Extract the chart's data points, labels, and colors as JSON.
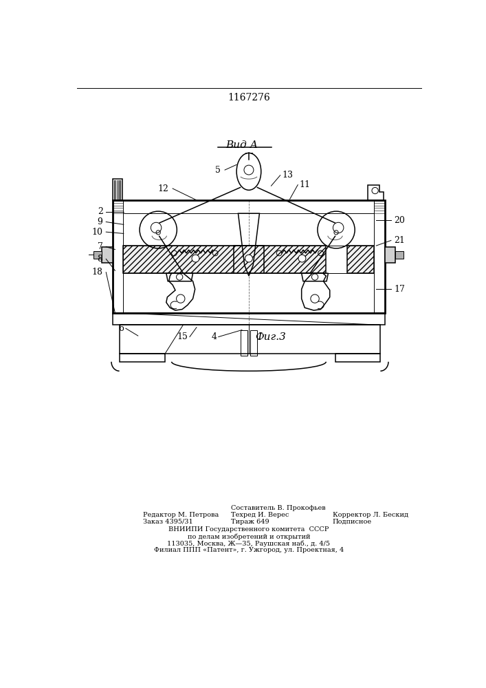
{
  "patent_number": "1167276",
  "view_label": "Вид А",
  "fig_label": "Фиг.3",
  "bg_color": "#ffffff",
  "line_color": "#000000",
  "footer": {
    "col1": [
      "Редактор М. Петрова",
      "Заказ 4395/31"
    ],
    "col2": [
      "Составитель В. Прокофьев",
      "Техред И. Верес",
      "Тираж 649"
    ],
    "col3": [
      "Корректор Л. Бескид",
      "Подписное"
    ],
    "center": [
      "ВНИИПИ Государственного комитета  СССР",
      "по делам изобретений и открытий",
      "113035, Москва, Ж—35, Раушская наб., д. 4/5",
      "Филиал ППП «Патент», г. Ужгород, ул. Проектная, 4"
    ]
  }
}
